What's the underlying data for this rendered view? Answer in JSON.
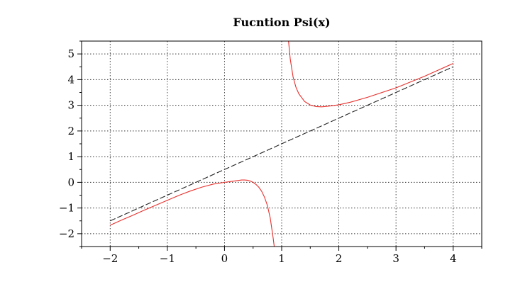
{
  "chart_data": {
    "type": "line",
    "title": "Fucntion  Psi(x)",
    "xlabel": "",
    "ylabel": "",
    "xlim": [
      -2.5,
      4.5
    ],
    "ylim": [
      -2.5,
      5.5
    ],
    "x_ticks": [
      "−2",
      "−1",
      "0",
      "1",
      "2",
      "3",
      "4"
    ],
    "y_ticks": [
      "−2",
      "−1",
      "0",
      "1",
      "2",
      "3",
      "4",
      "5"
    ],
    "grid": true,
    "series": [
      {
        "color": "#e8302c",
        "style": "solid",
        "segments": [
          [
            [
              -2.0,
              -1.67
            ],
            [
              -1.8,
              -1.47
            ],
            [
              -1.6,
              -1.28
            ],
            [
              -1.4,
              -1.08
            ],
            [
              -1.2,
              -0.89
            ],
            [
              -1.0,
              -0.7
            ],
            [
              -0.8,
              -0.51
            ],
            [
              -0.6,
              -0.34
            ],
            [
              -0.4,
              -0.19
            ],
            [
              -0.2,
              -0.07
            ],
            [
              0.0,
              0.0
            ],
            [
              0.1,
              0.03
            ],
            [
              0.2,
              0.06
            ],
            [
              0.3,
              0.09
            ],
            [
              0.35,
              0.09
            ],
            [
              0.4,
              0.08
            ],
            [
              0.45,
              0.05
            ],
            [
              0.5,
              0.0
            ],
            [
              0.55,
              -0.08
            ],
            [
              0.6,
              -0.19
            ],
            [
              0.65,
              -0.35
            ],
            [
              0.7,
              -0.58
            ],
            [
              0.75,
              -0.9
            ],
            [
              0.8,
              -1.39
            ],
            [
              0.85,
              -2.15
            ],
            [
              0.87,
              -2.5
            ]
          ],
          [
            [
              1.12,
              5.5
            ],
            [
              1.15,
              4.8
            ],
            [
              1.2,
              4.1
            ],
            [
              1.25,
              3.7
            ],
            [
              1.3,
              3.45
            ],
            [
              1.4,
              3.15
            ],
            [
              1.5,
              3.01
            ],
            [
              1.6,
              2.95
            ],
            [
              1.7,
              2.94
            ],
            [
              1.8,
              2.96
            ],
            [
              2.0,
              3.02
            ],
            [
              2.2,
              3.12
            ],
            [
              2.5,
              3.31
            ],
            [
              3.0,
              3.68
            ],
            [
              3.5,
              4.13
            ],
            [
              4.0,
              4.63
            ]
          ]
        ]
      },
      {
        "color": "#222222",
        "style": "dashed",
        "segments": [
          [
            [
              -2.0,
              -1.5
            ],
            [
              4.0,
              4.5
            ]
          ]
        ]
      }
    ]
  }
}
